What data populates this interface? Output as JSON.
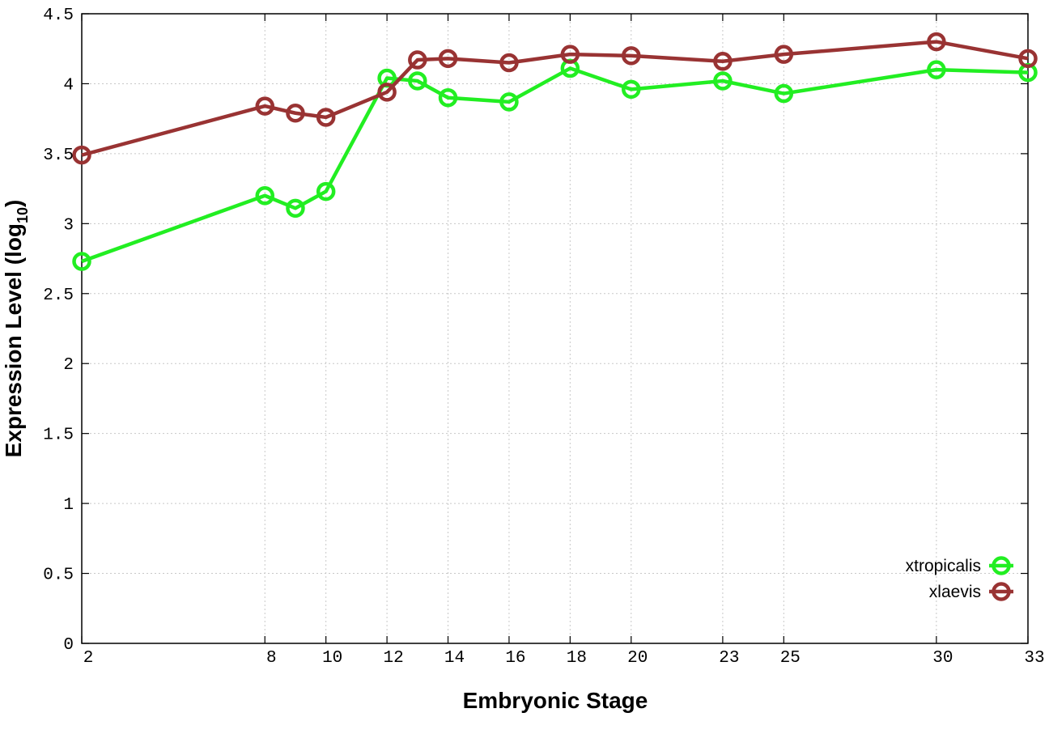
{
  "chart_data": {
    "type": "line",
    "xlabel": "Embryonic Stage",
    "ylabel": "Expression Level (log",
    "ylabel_subscript": "10",
    "ylabel_close": ")",
    "x": [
      2,
      8,
      9,
      10,
      12,
      13,
      14,
      16,
      18,
      20,
      23,
      25,
      30,
      33
    ],
    "x_tick_values": [
      2,
      8,
      10,
      12,
      14,
      16,
      18,
      20,
      23,
      25,
      30,
      33
    ],
    "x_tick_labels": [
      "2",
      "8",
      "10",
      "12",
      "14",
      "16",
      "18",
      "20",
      "23",
      "25",
      "30",
      "33"
    ],
    "xlim": [
      2,
      33
    ],
    "ylim": [
      0,
      4.5
    ],
    "y_tick_values": [
      0,
      0.5,
      1,
      1.5,
      2,
      2.5,
      3,
      3.5,
      4,
      4.5
    ],
    "y_tick_labels": [
      "0",
      "0.5",
      "1",
      "1.5",
      "2",
      "2.5",
      "3",
      "3.5",
      "4",
      "4.5"
    ],
    "grid": true,
    "legend_position": "bottom-right",
    "series": [
      {
        "name": "xtropicalis",
        "color": "#22ee22",
        "values": [
          2.73,
          3.2,
          3.11,
          3.23,
          4.04,
          4.02,
          3.9,
          3.87,
          4.11,
          3.96,
          4.02,
          3.93,
          4.1,
          4.08
        ]
      },
      {
        "name": "xlaevis",
        "color": "#993333",
        "values": [
          3.49,
          3.84,
          3.79,
          3.76,
          3.94,
          4.17,
          4.18,
          4.15,
          4.21,
          4.2,
          4.16,
          4.21,
          4.3,
          4.18
        ]
      }
    ]
  }
}
